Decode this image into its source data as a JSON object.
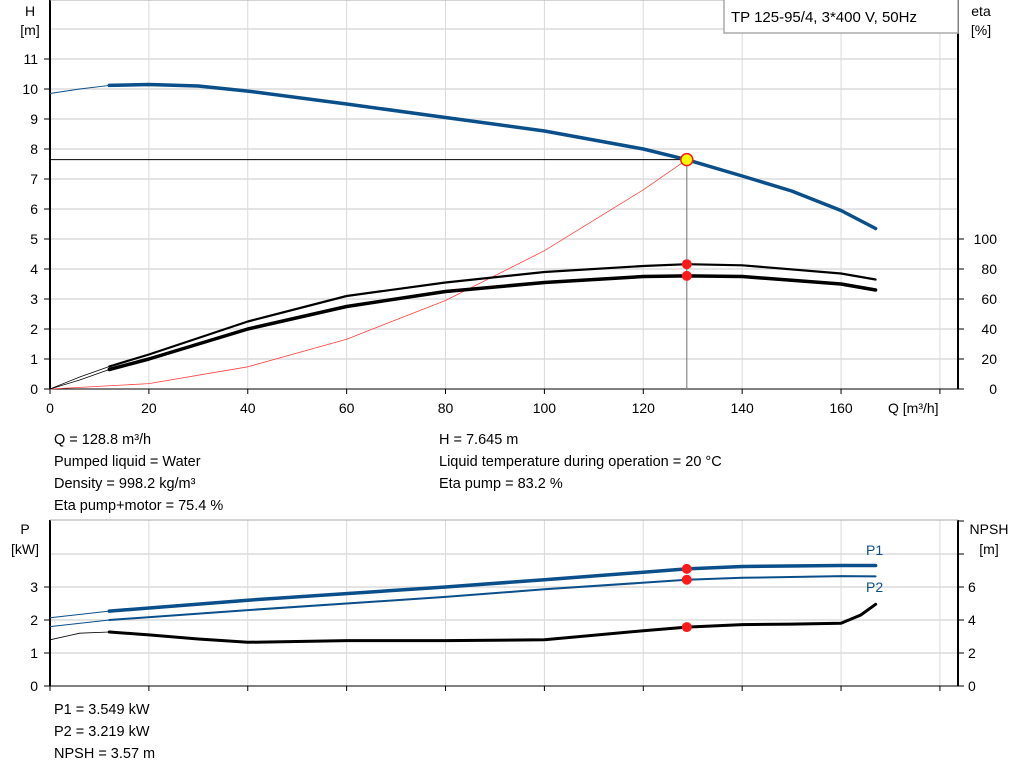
{
  "chart_data": [
    {
      "type": "line",
      "title": "TP 125-95/4, 3*400 V, 50Hz",
      "xlabel": "Q [m³/h]",
      "ylabel_left": [
        "H",
        "[m]"
      ],
      "ylabel_right": [
        "eta",
        "[%]"
      ],
      "xlim": [
        0,
        180
      ],
      "ylim_left": [
        0,
        13
      ],
      "ylim_right": [
        0,
        260
      ],
      "x_ticks": [
        0,
        20,
        40,
        60,
        80,
        100,
        120,
        140,
        160
      ],
      "y_ticks_left": [
        0,
        1,
        2,
        3,
        4,
        5,
        6,
        7,
        8,
        9,
        10,
        11
      ],
      "y_ticks_right": [
        0,
        20,
        40,
        60,
        80,
        100
      ],
      "grid": true,
      "legend": "top-right",
      "operating_point": {
        "Q": 128.8,
        "H": 7.645,
        "eta_pump": 83.2,
        "eta_pump_motor": 75.4
      },
      "series": [
        {
          "key": "H",
          "axis": "left",
          "color": "#0b4f8a",
          "x": [
            0,
            6,
            12,
            20,
            30,
            40,
            60,
            80,
            100,
            120,
            128.8,
            140,
            150,
            160,
            167
          ],
          "y": [
            9.85,
            10.0,
            10.12,
            10.15,
            10.1,
            9.93,
            9.5,
            9.05,
            8.6,
            8.0,
            7.645,
            7.1,
            6.6,
            5.95,
            5.35
          ]
        },
        {
          "key": "eta_pump",
          "axis": "right",
          "color": "#000000",
          "x": [
            0,
            6,
            12,
            20,
            40,
            60,
            80,
            100,
            120,
            128.8,
            140,
            160,
            167
          ],
          "y": [
            0,
            8,
            15,
            23,
            45,
            62,
            71,
            78,
            82,
            83.2,
            82.5,
            77,
            73
          ]
        },
        {
          "key": "eta_pump_motor",
          "axis": "right",
          "color": "#000000",
          "x": [
            0,
            6,
            12,
            20,
            40,
            60,
            80,
            100,
            120,
            128.8,
            140,
            160,
            167
          ],
          "y": [
            0,
            6,
            13,
            20,
            40,
            55,
            65,
            71,
            75,
            75.4,
            75,
            70,
            66
          ]
        },
        {
          "key": "system",
          "axis": "left",
          "color": "#ff4040",
          "x": [
            0,
            20,
            40,
            60,
            80,
            100,
            120,
            128.8
          ],
          "y": [
            0,
            0.18,
            0.74,
            1.66,
            2.95,
            4.61,
            6.64,
            7.645
          ]
        }
      ]
    },
    {
      "type": "line",
      "ylabel_left": [
        "P",
        "[kW]"
      ],
      "ylabel_right": [
        "NPSH",
        "[m]"
      ],
      "xlim": [
        0,
        180
      ],
      "ylim_left": [
        0,
        5
      ],
      "ylim_right": [
        0,
        10
      ],
      "x_ticks": [
        0,
        20,
        40,
        60,
        80,
        100,
        120,
        140,
        160
      ],
      "y_ticks_left": [
        0,
        1,
        2,
        3
      ],
      "y_ticks_right": [
        0,
        2,
        4,
        6
      ],
      "grid": true,
      "operating_point": {
        "Q": 128.8,
        "P1": 3.549,
        "P2": 3.219,
        "NPSH": 3.57
      },
      "series": [
        {
          "key": "P1",
          "name": "P1",
          "axis": "left",
          "color": "#0b4f8a",
          "x": [
            0,
            12,
            40,
            80,
            100,
            128.8,
            140,
            160,
            167
          ],
          "y": [
            2.07,
            2.27,
            2.6,
            3.0,
            3.22,
            3.549,
            3.62,
            3.65,
            3.65
          ]
        },
        {
          "key": "P2",
          "name": "P2",
          "axis": "left",
          "color": "#0b4f8a",
          "x": [
            0,
            12,
            40,
            80,
            100,
            128.8,
            140,
            160,
            167
          ],
          "y": [
            1.8,
            2.0,
            2.3,
            2.7,
            2.93,
            3.219,
            3.28,
            3.33,
            3.32
          ]
        },
        {
          "key": "NPSH",
          "axis": "right",
          "color": "#000000",
          "x": [
            0,
            6,
            12,
            20,
            30,
            40,
            60,
            80,
            100,
            120,
            128.8,
            140,
            150,
            160,
            164,
            167
          ],
          "y": [
            2.8,
            3.2,
            3.27,
            3.1,
            2.85,
            2.65,
            2.75,
            2.75,
            2.8,
            3.35,
            3.57,
            3.72,
            3.75,
            3.8,
            4.3,
            4.95
          ]
        }
      ]
    }
  ],
  "info_top": {
    "left": [
      "Q = 128.8 m³/h",
      "Pumped liquid = Water",
      "Density = 998.2 kg/m³",
      "Eta pump+motor = 75.4 %"
    ],
    "right": [
      "H = 7.645 m",
      "Liquid temperature during operation = 20 °C",
      "Eta pump = 83.2 %"
    ]
  },
  "info_bottom": [
    "P1 = 3.549 kW",
    "P2 = 3.219 kW",
    "NPSH = 3.57 m"
  ],
  "colors": {
    "curve_blue": "#0b4f8a",
    "operating_dot": "#ff1a1a",
    "op_point_fill": "#ffff00",
    "grid": "#d9d9d9"
  }
}
